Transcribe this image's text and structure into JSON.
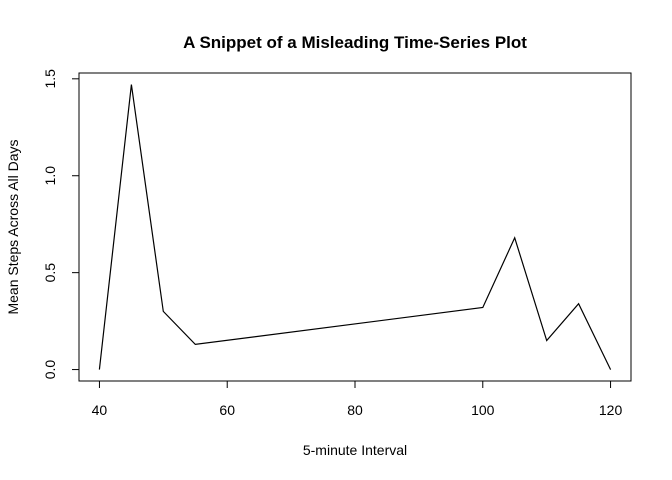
{
  "chart_data": {
    "type": "line",
    "title": "A Snippet of a Misleading Time-Series Plot",
    "xlabel": "5-minute Interval",
    "ylabel": "Mean Steps Across All Days",
    "x_ticks": [
      "40",
      "60",
      "80",
      "100",
      "120"
    ],
    "y_ticks": [
      "0.0",
      "0.5",
      "1.0",
      "1.5"
    ],
    "xlim": [
      36.8,
      123.2
    ],
    "ylim": [
      -0.059,
      1.53
    ],
    "grid": false,
    "series": [
      {
        "x": [
          40,
          45,
          50,
          55,
          100,
          105,
          110,
          115,
          120
        ],
        "y": [
          0.0,
          1.47,
          0.3,
          0.13,
          0.32,
          0.68,
          0.15,
          0.34,
          0.0
        ]
      }
    ]
  }
}
